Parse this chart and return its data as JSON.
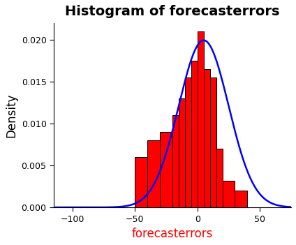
{
  "title": "Histogram of forecasterrors",
  "xlabel": "forecasterrors",
  "ylabel": "Density",
  "title_fontsize": 14,
  "xlabel_fontsize": 12,
  "ylabel_fontsize": 12,
  "title_fontweight": "bold",
  "bar_color": "red",
  "bar_edgecolor": "black",
  "line_color": "blue",
  "line_width": 1.8,
  "xlim": [
    -115,
    75
  ],
  "ylim": [
    0.0,
    0.022
  ],
  "xticks": [
    -100,
    -50,
    0,
    50
  ],
  "yticks": [
    0.0,
    0.005,
    0.01,
    0.015,
    0.02
  ],
  "ytick_labels": [
    "0.000",
    "0.005",
    "0.010",
    "0.015",
    "0.020"
  ],
  "background_color": "#ffffff",
  "bin_edges": [
    -50,
    -40,
    -30,
    -20,
    -15,
    -10,
    -5,
    0,
    5,
    10,
    15,
    20,
    30,
    40
  ],
  "bin_densities": [
    0.006,
    0.008,
    0.009,
    0.011,
    0.013,
    0.0155,
    0.0175,
    0.021,
    0.0165,
    0.0155,
    0.007,
    0.0032,
    0.002
  ],
  "kde_mean": 5.0,
  "kde_std": 20.0
}
